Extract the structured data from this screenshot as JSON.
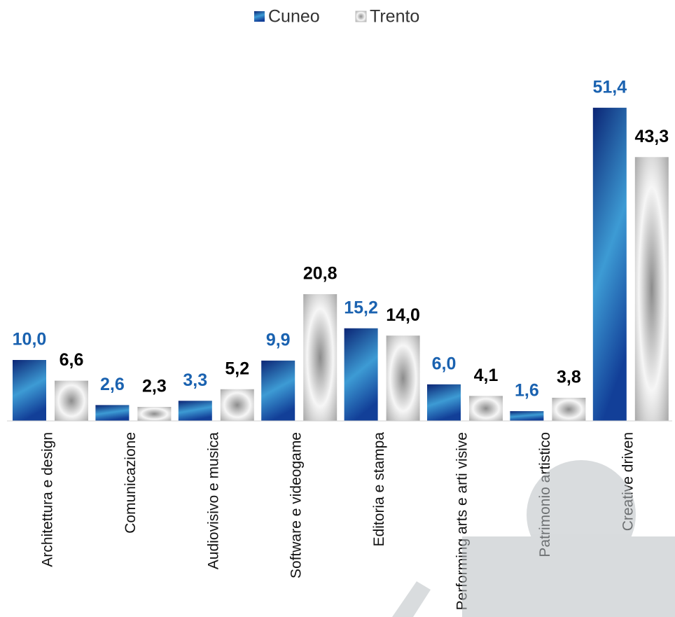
{
  "chart_data": {
    "type": "bar",
    "categories": [
      "Architettura e design",
      "Comunicazione",
      "Audiovisivo e musica",
      "Software e videogame",
      "Editoria e stampa",
      "Performing arts e arti visive",
      "Patrimonio artistico",
      "Creative driven"
    ],
    "series": [
      {
        "name": "Cuneo",
        "color": "#1f5fae",
        "label_color": "#1a62b0",
        "values": [
          10.0,
          2.6,
          3.3,
          9.9,
          15.2,
          6.0,
          1.6,
          51.4
        ],
        "value_labels": [
          "10,0",
          "2,6",
          "3,3",
          "9,9",
          "15,2",
          "6,0",
          "1,6",
          "51,4"
        ]
      },
      {
        "name": "Trento",
        "color": "#8c8c8c",
        "label_color": "#000000",
        "values": [
          6.6,
          2.3,
          5.2,
          20.8,
          14.0,
          4.1,
          3.8,
          43.3
        ],
        "value_labels": [
          "6,6",
          "2,3",
          "5,2",
          "20,8",
          "14,0",
          "4,1",
          "3,8",
          "43,3"
        ]
      }
    ],
    "legend": "top"
  }
}
